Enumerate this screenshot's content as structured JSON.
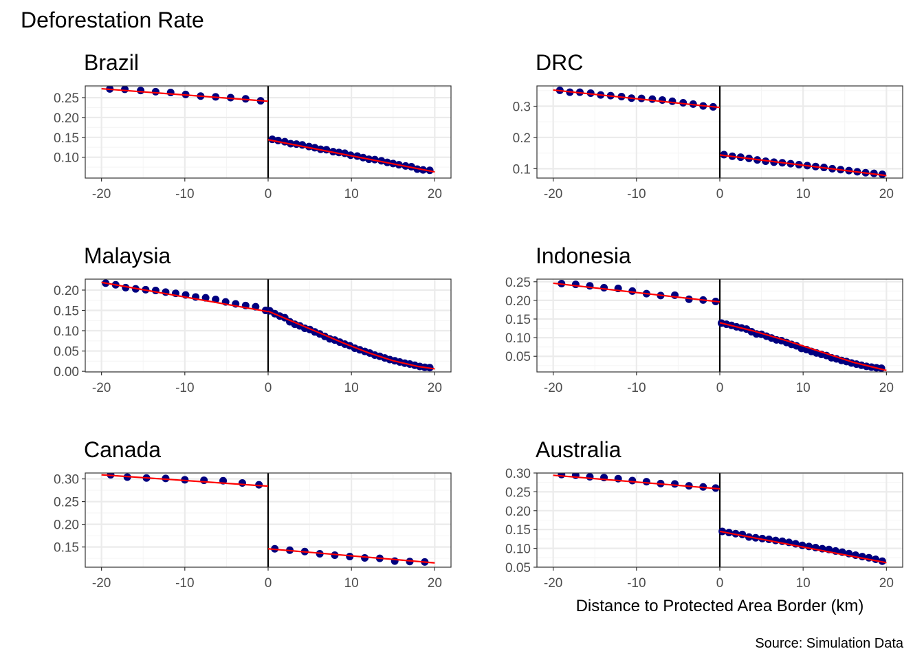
{
  "figure": {
    "ylabel": "Deforestation Rate",
    "xlabel": "Distance to Protected Area Border (km)",
    "caption": "Source: Simulation Data"
  },
  "colors": {
    "points": "#00007f",
    "fit_line": "#ff0000",
    "cutoff_line": "#000000",
    "grid_major": "#ebebeb",
    "grid_minor": "#f5f5f5",
    "panel_border": "#333333"
  },
  "chart_data": [
    {
      "type": "scatter",
      "title": "Brazil",
      "xlim": [
        -21.95,
        21.95
      ],
      "ylim": [
        0.0475,
        0.2795
      ],
      "xticks": [
        -20,
        -10,
        0,
        10,
        20
      ],
      "xtick_labels": [
        "-20",
        "-10",
        "0",
        "10",
        "20"
      ],
      "yticks": [
        0.1,
        0.15,
        0.2,
        0.25
      ],
      "ytick_labels": [
        "0.10",
        "0.15",
        "0.20",
        "0.25"
      ],
      "cutoff": 0,
      "segments": [
        {
          "x": [
            -19.0,
            -17.2,
            -15.3,
            -13.5,
            -11.7,
            -9.9,
            -8.1,
            -6.3,
            -4.5,
            -2.7,
            -0.9
          ],
          "y": [
            0.272,
            0.271,
            0.268,
            0.265,
            0.263,
            0.258,
            0.254,
            0.252,
            0.25,
            0.247,
            0.242
          ],
          "fit": [
            [
              -20,
              0.2725
            ],
            [
              0,
              0.241
            ]
          ]
        },
        {
          "x": [
            0.5,
            1.2,
            2.0,
            2.7,
            3.4,
            4.1,
            4.9,
            5.6,
            6.3,
            7.0,
            7.8,
            8.5,
            9.2,
            9.9,
            10.7,
            11.4,
            12.1,
            12.8,
            13.6,
            14.3,
            15.0,
            15.7,
            16.5,
            17.2,
            17.9,
            18.6,
            19.4
          ],
          "y": [
            0.145,
            0.142,
            0.139,
            0.134,
            0.133,
            0.131,
            0.127,
            0.124,
            0.12,
            0.119,
            0.114,
            0.112,
            0.11,
            0.105,
            0.103,
            0.099,
            0.095,
            0.094,
            0.091,
            0.087,
            0.084,
            0.081,
            0.078,
            0.076,
            0.07,
            0.068,
            0.067
          ],
          "fit": [
            [
              0,
              0.144
            ],
            [
              20,
              0.063
            ]
          ]
        }
      ]
    },
    {
      "type": "scatter",
      "title": "DRC",
      "xlim": [
        -21.95,
        21.95
      ],
      "ylim": [
        0.07,
        0.365
      ],
      "xticks": [
        -20,
        -10,
        0,
        10,
        20
      ],
      "xtick_labels": [
        "-20",
        "-10",
        "0",
        "10",
        "20"
      ],
      "yticks": [
        0.1,
        0.2,
        0.3
      ],
      "ytick_labels": [
        "0.1",
        "0.2",
        "0.3"
      ],
      "cutoff": 0,
      "segments": [
        {
          "x": [
            -19.2,
            -18.0,
            -16.8,
            -15.5,
            -14.3,
            -13.1,
            -11.8,
            -10.6,
            -9.4,
            -8.1,
            -6.9,
            -5.7,
            -4.4,
            -3.2,
            -2.0,
            -0.8
          ],
          "y": [
            0.351,
            0.345,
            0.345,
            0.342,
            0.336,
            0.334,
            0.331,
            0.326,
            0.325,
            0.323,
            0.32,
            0.316,
            0.311,
            0.307,
            0.301,
            0.298
          ],
          "fit": [
            [
              -20,
              0.352
            ],
            [
              0,
              0.296
            ]
          ]
        },
        {
          "x": [
            0.5,
            1.5,
            2.5,
            3.5,
            4.5,
            5.5,
            6.5,
            7.5,
            8.5,
            9.5,
            10.5,
            11.5,
            12.5,
            13.5,
            14.5,
            15.5,
            16.5,
            17.5,
            18.5,
            19.5
          ],
          "y": [
            0.145,
            0.14,
            0.137,
            0.133,
            0.128,
            0.124,
            0.121,
            0.119,
            0.116,
            0.113,
            0.11,
            0.107,
            0.104,
            0.1,
            0.097,
            0.094,
            0.09,
            0.087,
            0.085,
            0.082
          ],
          "fit": [
            [
              0,
              0.144
            ],
            [
              20,
              0.078
            ]
          ]
        }
      ]
    },
    {
      "type": "scatter",
      "title": "Malaysia",
      "xlim": [
        -21.95,
        21.95
      ],
      "ylim": [
        -0.0015,
        0.227
      ],
      "xticks": [
        -20,
        -10,
        0,
        10,
        20
      ],
      "xtick_labels": [
        "-20",
        "-10",
        "0",
        "10",
        "20"
      ],
      "yticks": [
        0.0,
        0.05,
        0.1,
        0.15,
        0.2
      ],
      "ytick_labels": [
        "0.00",
        "0.05",
        "0.10",
        "0.15",
        "0.20"
      ],
      "cutoff": 0,
      "segments": [
        {
          "x": [
            -19.5,
            -18.3,
            -17.1,
            -15.9,
            -14.7,
            -13.5,
            -12.3,
            -11.1,
            -9.9,
            -8.7,
            -7.5,
            -6.3,
            -5.1,
            -3.9,
            -2.7,
            -1.5,
            -0.3
          ],
          "y": [
            0.217,
            0.213,
            0.206,
            0.203,
            0.201,
            0.199,
            0.195,
            0.192,
            0.188,
            0.183,
            0.181,
            0.177,
            0.171,
            0.166,
            0.162,
            0.159,
            0.15
          ],
          "fit": [
            [
              -20,
              0.219
            ],
            [
              0,
              0.147
            ]
          ]
        },
        {
          "x": [
            0.2,
            0.8,
            1.4,
            2.0,
            2.6,
            3.2,
            3.8,
            4.4,
            5.0,
            5.6,
            6.2,
            6.8,
            7.4,
            8.0,
            8.6,
            9.2,
            9.8,
            10.4,
            11.0,
            11.6,
            12.2,
            12.8,
            13.4,
            14.0,
            14.6,
            15.2,
            15.8,
            16.4,
            17.0,
            17.6,
            18.2,
            18.8,
            19.4
          ],
          "y": [
            0.149,
            0.142,
            0.136,
            0.132,
            0.122,
            0.116,
            0.112,
            0.106,
            0.103,
            0.097,
            0.092,
            0.086,
            0.08,
            0.077,
            0.072,
            0.067,
            0.063,
            0.057,
            0.053,
            0.049,
            0.045,
            0.04,
            0.037,
            0.033,
            0.029,
            0.026,
            0.023,
            0.02,
            0.018,
            0.015,
            0.012,
            0.01,
            0.009
          ],
          "fit": [
            [
              0,
              0.148
            ],
            [
              3,
              0.122
            ],
            [
              6,
              0.096
            ],
            [
              9,
              0.07
            ],
            [
              12,
              0.046
            ],
            [
              15,
              0.026
            ],
            [
              18,
              0.012
            ],
            [
              20,
              0.006
            ]
          ]
        }
      ]
    },
    {
      "type": "scatter",
      "title": "Indonesia",
      "xlim": [
        -21.95,
        21.95
      ],
      "ylim": [
        0.008,
        0.257
      ],
      "xticks": [
        -20,
        -10,
        0,
        10,
        20
      ],
      "xtick_labels": [
        "-20",
        "-10",
        "0",
        "10",
        "20"
      ],
      "yticks": [
        0.05,
        0.1,
        0.15,
        0.2,
        0.25
      ],
      "ytick_labels": [
        "0.05",
        "0.10",
        "0.15",
        "0.20",
        "0.25"
      ],
      "cutoff": 0,
      "segments": [
        {
          "x": [
            -19.0,
            -17.3,
            -15.6,
            -13.9,
            -12.2,
            -10.5,
            -8.8,
            -7.1,
            -5.4,
            -3.7,
            -2.0,
            -0.5
          ],
          "y": [
            0.245,
            0.243,
            0.239,
            0.234,
            0.232,
            0.225,
            0.218,
            0.213,
            0.214,
            0.203,
            0.201,
            0.197
          ],
          "fit": [
            [
              -20,
              0.246
            ],
            [
              0,
              0.196
            ]
          ]
        },
        {
          "x": [
            0.2,
            0.8,
            1.4,
            2.0,
            2.6,
            3.2,
            3.8,
            4.4,
            5.0,
            5.6,
            6.2,
            6.8,
            7.4,
            8.0,
            8.6,
            9.2,
            9.8,
            10.4,
            11.0,
            11.6,
            12.2,
            12.8,
            13.4,
            14.0,
            14.6,
            15.2,
            15.8,
            16.4,
            17.0,
            17.6,
            18.2,
            18.8,
            19.4
          ],
          "y": [
            0.139,
            0.136,
            0.133,
            0.129,
            0.126,
            0.123,
            0.116,
            0.11,
            0.109,
            0.104,
            0.099,
            0.094,
            0.092,
            0.087,
            0.082,
            0.078,
            0.071,
            0.068,
            0.063,
            0.059,
            0.055,
            0.052,
            0.046,
            0.043,
            0.039,
            0.036,
            0.032,
            0.029,
            0.026,
            0.023,
            0.021,
            0.019,
            0.018
          ],
          "fit": [
            [
              0,
              0.14
            ],
            [
              4,
              0.118
            ],
            [
              8,
              0.092
            ],
            [
              12,
              0.063
            ],
            [
              16,
              0.034
            ],
            [
              20,
              0.012
            ]
          ]
        }
      ]
    },
    {
      "type": "scatter",
      "title": "Canada",
      "xlim": [
        -21.95,
        21.95
      ],
      "ylim": [
        0.1055,
        0.313
      ],
      "xticks": [
        -20,
        -10,
        0,
        10,
        20
      ],
      "xtick_labels": [
        "-20",
        "-10",
        "0",
        "10",
        "20"
      ],
      "yticks": [
        0.15,
        0.2,
        0.25,
        0.3
      ],
      "ytick_labels": [
        "0.15",
        "0.20",
        "0.25",
        "0.30"
      ],
      "cutoff": 0,
      "segments": [
        {
          "x": [
            -18.9,
            -16.9,
            -14.6,
            -12.3,
            -10.0,
            -7.7,
            -5.4,
            -3.1,
            -1.1
          ],
          "y": [
            0.309,
            0.304,
            0.302,
            0.301,
            0.298,
            0.297,
            0.296,
            0.291,
            0.287
          ],
          "fit": [
            [
              -20,
              0.309
            ],
            [
              0,
              0.284
            ]
          ]
        },
        {
          "x": [
            0.8,
            2.6,
            4.4,
            6.2,
            8.0,
            9.8,
            11.6,
            13.4,
            15.2,
            17.0,
            18.8
          ],
          "y": [
            0.146,
            0.143,
            0.14,
            0.135,
            0.132,
            0.129,
            0.126,
            0.125,
            0.119,
            0.118,
            0.117
          ],
          "fit": [
            [
              0,
              0.146
            ],
            [
              20,
              0.115
            ]
          ]
        }
      ]
    },
    {
      "type": "scatter",
      "title": "Australia",
      "xlim": [
        -21.95,
        21.95
      ],
      "ylim": [
        0.05,
        0.3
      ],
      "xticks": [
        -20,
        -10,
        0,
        10,
        20
      ],
      "xtick_labels": [
        "-20",
        "-10",
        "0",
        "10",
        "20"
      ],
      "yticks": [
        0.05,
        0.1,
        0.15,
        0.2,
        0.25,
        0.3
      ],
      "ytick_labels": [
        "0.05",
        "0.10",
        "0.15",
        "0.20",
        "0.25",
        "0.30"
      ],
      "cutoff": 0,
      "segments": [
        {
          "x": [
            -19.0,
            -17.3,
            -15.6,
            -13.9,
            -12.2,
            -10.5,
            -8.8,
            -7.1,
            -5.4,
            -3.7,
            -2.0,
            -0.5
          ],
          "y": [
            0.296,
            0.294,
            0.29,
            0.288,
            0.285,
            0.28,
            0.277,
            0.272,
            0.271,
            0.266,
            0.263,
            0.26
          ],
          "fit": [
            [
              -20,
              0.294
            ],
            [
              0,
              0.258
            ]
          ]
        },
        {
          "x": [
            0.3,
            1.1,
            1.9,
            2.7,
            3.5,
            4.3,
            5.1,
            5.9,
            6.7,
            7.5,
            8.3,
            9.1,
            9.9,
            10.7,
            11.5,
            12.3,
            13.1,
            13.9,
            14.7,
            15.5,
            16.3,
            17.1,
            17.9,
            18.7,
            19.5
          ],
          "y": [
            0.145,
            0.142,
            0.139,
            0.137,
            0.13,
            0.128,
            0.126,
            0.124,
            0.121,
            0.119,
            0.116,
            0.112,
            0.108,
            0.105,
            0.102,
            0.099,
            0.097,
            0.093,
            0.09,
            0.086,
            0.082,
            0.078,
            0.075,
            0.071,
            0.066
          ],
          "fit": [
            [
              0,
              0.145
            ],
            [
              20,
              0.062
            ]
          ]
        }
      ]
    }
  ]
}
